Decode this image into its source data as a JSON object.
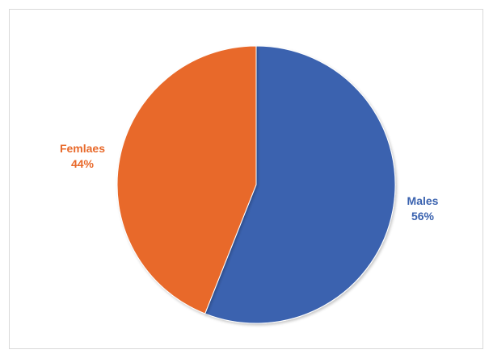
{
  "chart_data": {
    "type": "pie",
    "title": "",
    "slices": [
      {
        "label": "Males",
        "value": 56,
        "percent_label": "56%",
        "color": "#3A62AF"
      },
      {
        "label": "Femlaes",
        "value": 44,
        "percent_label": "44%",
        "color": "#E8692A"
      }
    ],
    "start_angle_deg": 0,
    "direction": "clockwise",
    "label_position": "outside"
  }
}
